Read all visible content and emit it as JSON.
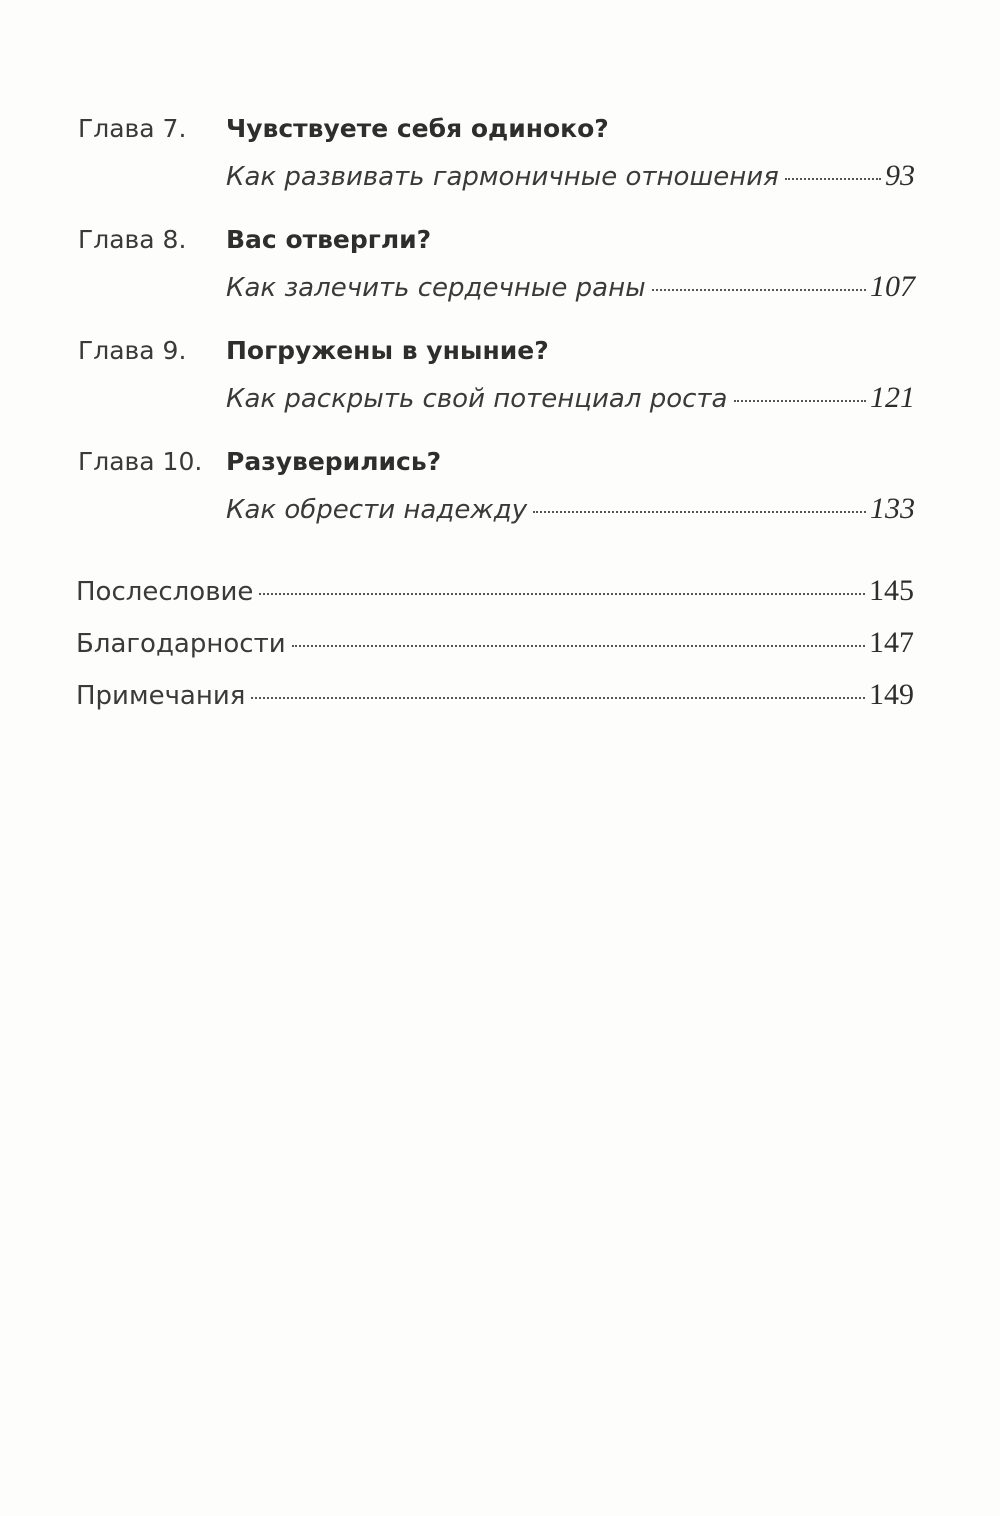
{
  "chapters": [
    {
      "label": "Глава 7.",
      "title": "Чувствуете себя одиноко?",
      "subtitle": "Как развивать гармоничные отношения",
      "page": "93"
    },
    {
      "label": "Глава 8.",
      "title": "Вас отвергли?",
      "subtitle": "Как залечить сердечные раны",
      "page": "107"
    },
    {
      "label": "Глава 9.",
      "title": "Погружены в уныние?",
      "subtitle": "Как раскрыть свой потенциал роста",
      "page": "121"
    },
    {
      "label": "Глава 10.",
      "title": "Разуверились?",
      "subtitle": "Как обрести надежду",
      "page": "133"
    }
  ],
  "back_matter": [
    {
      "title": "Послесловие",
      "page": "145"
    },
    {
      "title": "Благодарности",
      "page": "147"
    },
    {
      "title": "Примечания",
      "page": "149"
    }
  ]
}
